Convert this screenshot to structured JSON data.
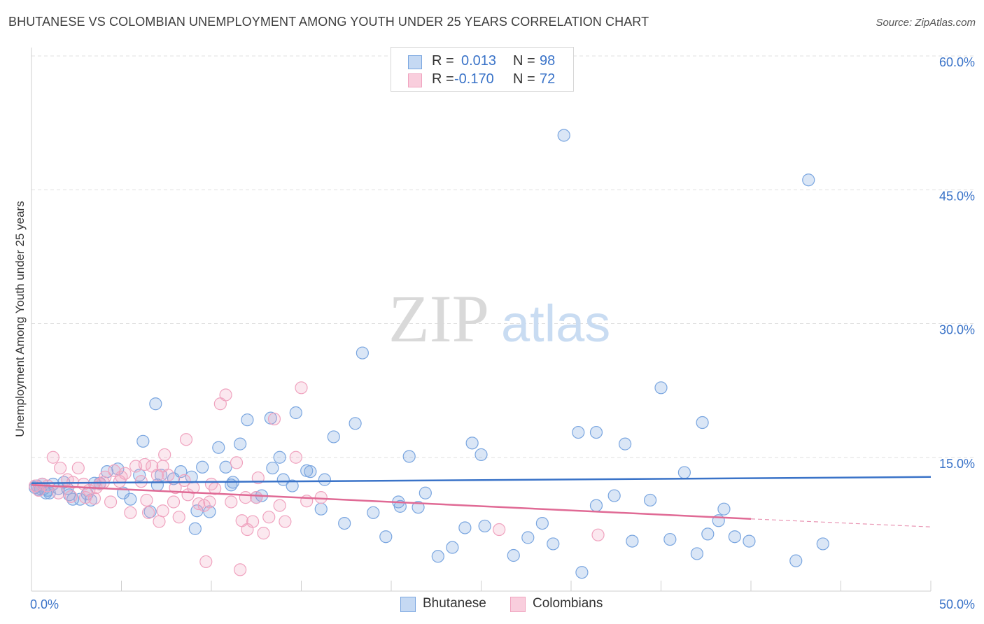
{
  "header": {
    "title": "BHUTANESE VS COLOMBIAN UNEMPLOYMENT AMONG YOUTH UNDER 25 YEARS CORRELATION CHART",
    "source": "Source: ZipAtlas.com"
  },
  "watermark": {
    "zip": "ZIP",
    "atlas": "atlas"
  },
  "legend": {
    "rows": [
      {
        "r_label": "R =",
        "r_value": "0.013",
        "n_label": "N =",
        "n_value": "98"
      },
      {
        "r_label": "R =",
        "r_value": "-0.170",
        "n_label": "N =",
        "n_value": "72"
      }
    ]
  },
  "bottom_legend": {
    "items": [
      "Bhutanese",
      "Colombians"
    ]
  },
  "chart_data": {
    "type": "scatter",
    "title": "BHUTANESE VS COLOMBIAN UNEMPLOYMENT AMONG YOUTH UNDER 25 YEARS CORRELATION CHART",
    "xlabel": "",
    "ylabel": "Unemployment Among Youth under 25 years",
    "xlim": [
      0,
      50
    ],
    "ylim": [
      0,
      60
    ],
    "x_tick_labels": [
      "0.0%",
      "50.0%"
    ],
    "y_ticks": [
      15,
      30,
      45,
      60
    ],
    "y_tick_labels": [
      "15.0%",
      "30.0%",
      "45.0%",
      "60.0%"
    ],
    "grid": "horizontal dashed",
    "legend_position": "top-center",
    "colors": {
      "Bhutanese": "#7aa6e0",
      "Colombians": "#f0a3bf",
      "blue_line": "#3a73c8",
      "pink_line": "#e06a95",
      "value_text": "#3a73c8"
    },
    "series": [
      {
        "name": "Bhutanese",
        "r": 0.013,
        "n": 98,
        "trend": {
          "x": [
            0,
            50
          ],
          "y": [
            12.1,
            12.8
          ]
        },
        "points": [
          [
            0.3,
            11.8
          ],
          [
            0.5,
            11.5
          ],
          [
            0.6,
            12.0
          ],
          [
            0.8,
            11.0
          ],
          [
            0.9,
            11.3
          ],
          [
            1.2,
            12.0
          ],
          [
            1.5,
            11.5
          ],
          [
            1.8,
            12.2
          ],
          [
            2.1,
            10.8
          ],
          [
            2.3,
            10.3
          ],
          [
            2.7,
            10.3
          ],
          [
            3.1,
            10.9
          ],
          [
            3.5,
            12.1
          ],
          [
            3.8,
            12.1
          ],
          [
            4.2,
            13.4
          ],
          [
            4.8,
            13.7
          ],
          [
            5.1,
            11.0
          ],
          [
            5.5,
            10.3
          ],
          [
            6.0,
            13.0
          ],
          [
            6.6,
            8.9
          ],
          [
            7.0,
            11.9
          ],
          [
            7.2,
            13.0
          ],
          [
            7.9,
            12.6
          ],
          [
            8.3,
            13.4
          ],
          [
            8.9,
            12.8
          ],
          [
            9.1,
            7.0
          ],
          [
            9.5,
            13.9
          ],
          [
            9.9,
            8.9
          ],
          [
            10.4,
            16.1
          ],
          [
            10.8,
            13.9
          ],
          [
            11.1,
            11.9
          ],
          [
            11.6,
            16.5
          ],
          [
            12.5,
            10.5
          ],
          [
            12.8,
            10.7
          ],
          [
            13.4,
            13.8
          ],
          [
            13.8,
            15.0
          ],
          [
            14.5,
            11.8
          ],
          [
            15.5,
            13.4
          ],
          [
            16.1,
            9.2
          ],
          [
            16.8,
            17.3
          ],
          [
            17.4,
            7.6
          ],
          [
            18.0,
            18.8
          ],
          [
            19.0,
            8.8
          ],
          [
            19.7,
            6.1
          ],
          [
            20.4,
            10.0
          ],
          [
            21.0,
            15.1
          ],
          [
            21.5,
            9.4
          ],
          [
            22.6,
            3.9
          ],
          [
            23.4,
            4.9
          ],
          [
            24.1,
            7.1
          ],
          [
            24.5,
            16.6
          ],
          [
            25.0,
            15.3
          ],
          [
            26.8,
            4.0
          ],
          [
            27.6,
            6.0
          ],
          [
            28.4,
            7.6
          ],
          [
            29.0,
            5.3
          ],
          [
            29.6,
            51.1
          ],
          [
            30.6,
            2.1
          ],
          [
            31.4,
            9.6
          ],
          [
            32.4,
            10.7
          ],
          [
            33.4,
            5.6
          ],
          [
            34.4,
            10.2
          ],
          [
            35.0,
            22.8
          ],
          [
            35.5,
            5.8
          ],
          [
            36.3,
            13.3
          ],
          [
            37.0,
            4.2
          ],
          [
            37.6,
            6.4
          ],
          [
            38.2,
            7.9
          ],
          [
            38.5,
            9.2
          ],
          [
            39.1,
            6.1
          ],
          [
            39.9,
            5.6
          ],
          [
            42.5,
            3.4
          ],
          [
            43.2,
            46.1
          ],
          [
            44.0,
            5.3
          ],
          [
            21.9,
            11.0
          ],
          [
            3.3,
            10.2
          ],
          [
            6.9,
            21.0
          ],
          [
            12.0,
            19.2
          ],
          [
            14.7,
            20.0
          ],
          [
            18.4,
            26.7
          ],
          [
            25.2,
            7.3
          ],
          [
            13.3,
            19.4
          ],
          [
            6.2,
            16.8
          ],
          [
            9.2,
            9.0
          ],
          [
            11.2,
            12.2
          ],
          [
            14.0,
            12.5
          ],
          [
            16.3,
            12.5
          ],
          [
            20.5,
            9.5
          ],
          [
            15.3,
            13.5
          ],
          [
            2.0,
            11.5
          ],
          [
            1.0,
            11.0
          ],
          [
            0.7,
            11.5
          ],
          [
            0.4,
            11.4
          ],
          [
            0.2,
            11.6
          ],
          [
            31.4,
            17.8
          ],
          [
            30.4,
            17.8
          ],
          [
            33.0,
            16.5
          ],
          [
            37.3,
            18.9
          ]
        ]
      },
      {
        "name": "Colombians",
        "r": -0.17,
        "n": 72,
        "trend": {
          "x": [
            0,
            40
          ],
          "y": [
            11.9,
            8.1
          ]
        },
        "trend_dashed": {
          "x": [
            40,
            50
          ],
          "y": [
            8.1,
            7.2
          ]
        },
        "points": [
          [
            0.2,
            11.8
          ],
          [
            0.4,
            11.3
          ],
          [
            0.6,
            12.0
          ],
          [
            0.9,
            11.8
          ],
          [
            1.2,
            15.0
          ],
          [
            1.6,
            13.8
          ],
          [
            2.0,
            12.5
          ],
          [
            2.3,
            12.2
          ],
          [
            2.6,
            13.8
          ],
          [
            2.9,
            12.0
          ],
          [
            3.2,
            11.3
          ],
          [
            3.5,
            10.4
          ],
          [
            3.8,
            12.0
          ],
          [
            4.1,
            12.8
          ],
          [
            4.4,
            10.0
          ],
          [
            4.6,
            13.5
          ],
          [
            4.9,
            12.3
          ],
          [
            5.2,
            13.2
          ],
          [
            5.5,
            8.8
          ],
          [
            5.8,
            14.0
          ],
          [
            6.1,
            12.3
          ],
          [
            6.4,
            10.2
          ],
          [
            6.7,
            14.0
          ],
          [
            7.0,
            13.0
          ],
          [
            7.3,
            14.0
          ],
          [
            7.6,
            13.0
          ],
          [
            7.9,
            10.0
          ],
          [
            8.2,
            8.3
          ],
          [
            8.5,
            12.4
          ],
          [
            8.7,
            10.8
          ],
          [
            9.0,
            11.6
          ],
          [
            9.3,
            9.8
          ],
          [
            9.6,
            9.6
          ],
          [
            9.9,
            10.0
          ],
          [
            10.2,
            11.5
          ],
          [
            10.5,
            21.0
          ],
          [
            10.8,
            22.0
          ],
          [
            11.1,
            10.0
          ],
          [
            11.4,
            14.4
          ],
          [
            11.7,
            7.9
          ],
          [
            12.0,
            6.9
          ],
          [
            12.3,
            7.8
          ],
          [
            12.6,
            12.7
          ],
          [
            12.9,
            6.5
          ],
          [
            13.2,
            8.3
          ],
          [
            13.5,
            19.3
          ],
          [
            14.1,
            7.8
          ],
          [
            14.7,
            15.0
          ],
          [
            15.3,
            10.1
          ],
          [
            15.0,
            22.8
          ],
          [
            6.5,
            8.8
          ],
          [
            7.4,
            15.3
          ],
          [
            8.6,
            17.0
          ],
          [
            9.7,
            3.3
          ],
          [
            11.6,
            2.4
          ],
          [
            12.5,
            10.5
          ],
          [
            26.0,
            6.9
          ],
          [
            31.5,
            6.3
          ],
          [
            16.1,
            10.5
          ],
          [
            7.1,
            7.8
          ],
          [
            7.3,
            9.0
          ],
          [
            3.0,
            10.5
          ],
          [
            4.0,
            12.2
          ],
          [
            5.0,
            12.8
          ],
          [
            6.3,
            14.2
          ],
          [
            10.0,
            12.0
          ],
          [
            11.9,
            10.5
          ],
          [
            3.6,
            11.6
          ],
          [
            1.5,
            11.0
          ],
          [
            2.2,
            10.6
          ],
          [
            13.8,
            9.6
          ],
          [
            8.0,
            11.6
          ]
        ]
      }
    ]
  }
}
